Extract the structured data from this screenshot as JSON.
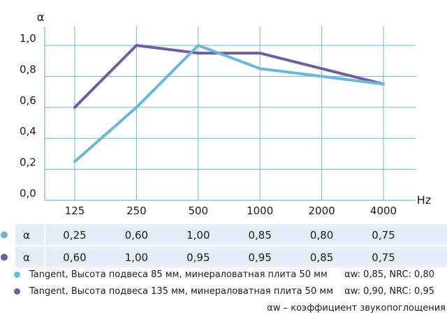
{
  "chart_data": {
    "type": "line",
    "ylabel": "α",
    "xlabel": "Hz",
    "x": [
      "125",
      "250",
      "500",
      "1000",
      "2000",
      "4000"
    ],
    "yticks": [
      "0,0",
      "0,2",
      "0,4",
      "0,6",
      "0,8",
      "1,0"
    ],
    "ylim": [
      0,
      1.1
    ],
    "grid": true,
    "series": [
      {
        "name": "Tangent, Высота подвеса 85 мм, минераловатная плита 50 мм",
        "color": "#6db6d6",
        "values": [
          0.25,
          0.6,
          1.0,
          0.85,
          0.8,
          0.75
        ],
        "value_labels": [
          "0,25",
          "0,60",
          "1,00",
          "0,85",
          "0,80",
          "0,75"
        ],
        "stat": "αw: 0,85, NRC: 0,80"
      },
      {
        "name": "Tangent, Высота подвеса 135 мм, минераловатная плита 50 мм",
        "color": "#6f5ca3",
        "values": [
          0.6,
          1.0,
          0.95,
          0.95,
          0.85,
          0.75
        ],
        "value_labels": [
          "0,60",
          "1,00",
          "0,95",
          "0,95",
          "0,85",
          "0,75"
        ],
        "stat": "αw: 0,90, NRC: 0,95"
      }
    ],
    "table": {
      "row_header": "α",
      "band_color": "#e3eef8"
    },
    "grid_color": "#6db6d6",
    "footnote": "αw – коэффициент звукопоглощения"
  }
}
